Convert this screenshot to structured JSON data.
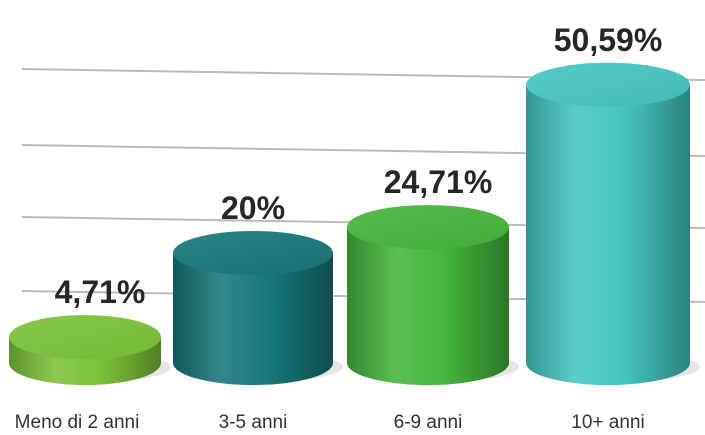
{
  "chart_data": {
    "type": "bar",
    "categories": [
      "Meno di 2 anni",
      "3-5 anni",
      "6-9 anni",
      "10+ anni"
    ],
    "values": [
      4.71,
      20,
      24.71,
      50.59
    ],
    "value_labels": [
      "4,71%",
      "20%",
      "24,71%",
      "50,59%"
    ],
    "title": "",
    "xlabel": "",
    "ylabel": "",
    "ylim": [
      0,
      60
    ],
    "grid": true,
    "legend": "none",
    "style": "3d-cylinder",
    "colors": [
      "#7cc339",
      "#17777a",
      "#45b53c",
      "#45c6c2"
    ]
  }
}
